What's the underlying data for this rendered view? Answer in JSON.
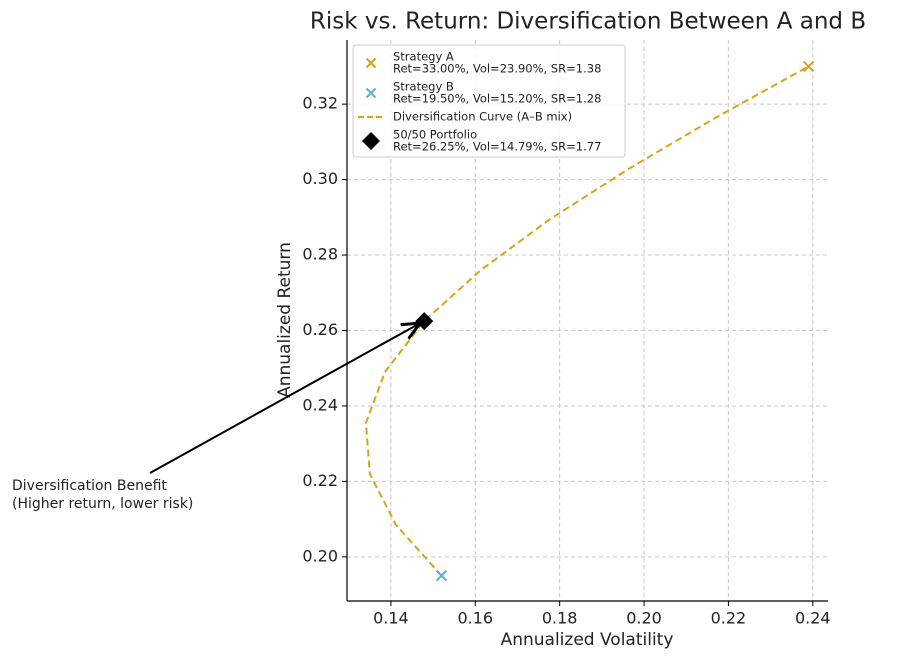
{
  "chart_data": {
    "type": "scatter",
    "title": "Risk vs. Return: Diversification Between A and B",
    "x_label": "Annualized Volatility",
    "y_label": "Annualized Return",
    "xlim": [
      0.1296,
      0.2436
    ],
    "ylim": [
      0.1883,
      0.337
    ],
    "xticks": [
      0.14,
      0.16,
      0.18,
      {
        "value": 0.2,
        "label": "0.20"
      },
      0.22,
      0.24
    ],
    "yticks": [
      {
        "value": 0.2,
        "label": "0.20"
      },
      0.22,
      0.24,
      0.26,
      0.28,
      {
        "value": 0.3,
        "label": "0.30"
      },
      0.32
    ],
    "grid": true,
    "legend": "upper left",
    "series": [
      {
        "name": "Strategy A",
        "stats": "Ret=33.00%, Vol=23.90%, SR=1.38",
        "type": "x",
        "color": "#d9a21b",
        "x": [
          0.239
        ],
        "values": [
          0.33
        ]
      },
      {
        "name": "Strategy B",
        "stats": "Ret=19.50%, Vol=15.20%, SR=1.28",
        "type": "x",
        "color": "#5aaed8",
        "x": [
          0.152
        ],
        "values": [
          0.195
        ]
      },
      {
        "name": "Diversification Curve (A–B mix)",
        "type": "dashed",
        "color": "#d9a21b",
        "x": [
          0.152,
          0.1412,
          0.135,
          0.1341,
          0.1386,
          0.1479,
          0.1613,
          0.1777,
          0.1966,
          0.2171,
          0.239
        ],
        "values": [
          0.195,
          0.2085,
          0.222,
          0.2355,
          0.249,
          0.2625,
          0.276,
          0.2895,
          0.303,
          0.3165,
          0.33
        ]
      },
      {
        "name": "50/50 Portfolio",
        "stats": "Ret=26.25%, Vol=14.79%, SR=1.77",
        "type": "diamond",
        "color": "#000000",
        "x": [
          0.1479
        ],
        "values": [
          0.2625
        ]
      }
    ],
    "annotation": {
      "lines": [
        "Diversification Benefit",
        "(Higher return, lower risk)"
      ],
      "x": 0.1479,
      "y": 0.2625
    }
  }
}
